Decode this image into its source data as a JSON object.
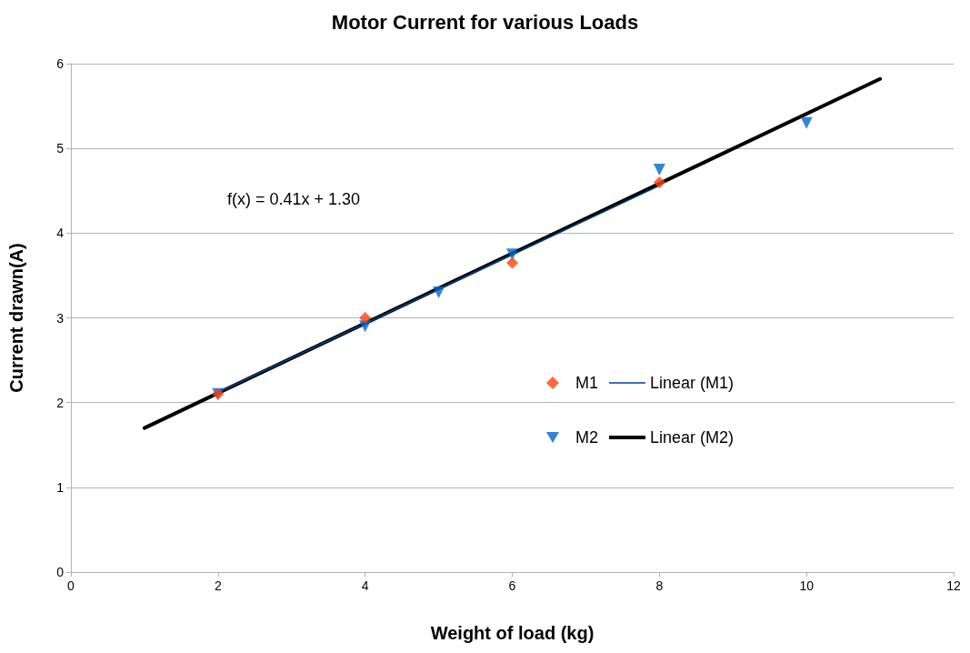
{
  "chart_data": {
    "type": "scatter",
    "title": "Motor Current for various Loads",
    "xlabel": "Weight of load (kg)",
    "ylabel": "Current drawn(A)",
    "xlim": [
      0,
      12
    ],
    "xticks": [
      0,
      2,
      4,
      6,
      8,
      10,
      12
    ],
    "ylim": [
      0,
      6
    ],
    "yticks": [
      0,
      1,
      2,
      3,
      4,
      5,
      6
    ],
    "grid": "y",
    "legend": "right",
    "annotations": [
      "f(x) = 0.41x + 1.30"
    ],
    "series": [
      {
        "name": "M1",
        "type": "scatter",
        "marker": "diamond",
        "color": "#ff420e",
        "x": [
          2,
          4,
          6,
          8
        ],
        "values": [
          2.1,
          3.0,
          3.65,
          4.6
        ]
      },
      {
        "name": "Linear (M1)",
        "type": "line",
        "marker": "none",
        "line_style": "solid",
        "color": "#004586",
        "x": [
          2,
          8
        ],
        "values": [
          2.12,
          4.56
        ]
      },
      {
        "name": "M2",
        "type": "scatter",
        "marker": "triangle",
        "color": "#0066cc",
        "x": [
          2,
          4,
          5,
          6,
          8,
          10
        ],
        "values": [
          2.1,
          2.9,
          3.3,
          3.75,
          4.75,
          5.3
        ]
      },
      {
        "name": "Linear (M2)",
        "type": "line",
        "marker": "none",
        "line_style": "solid",
        "color": "#000000",
        "x": [
          1,
          11
        ],
        "values": [
          1.7,
          5.82
        ]
      }
    ]
  }
}
